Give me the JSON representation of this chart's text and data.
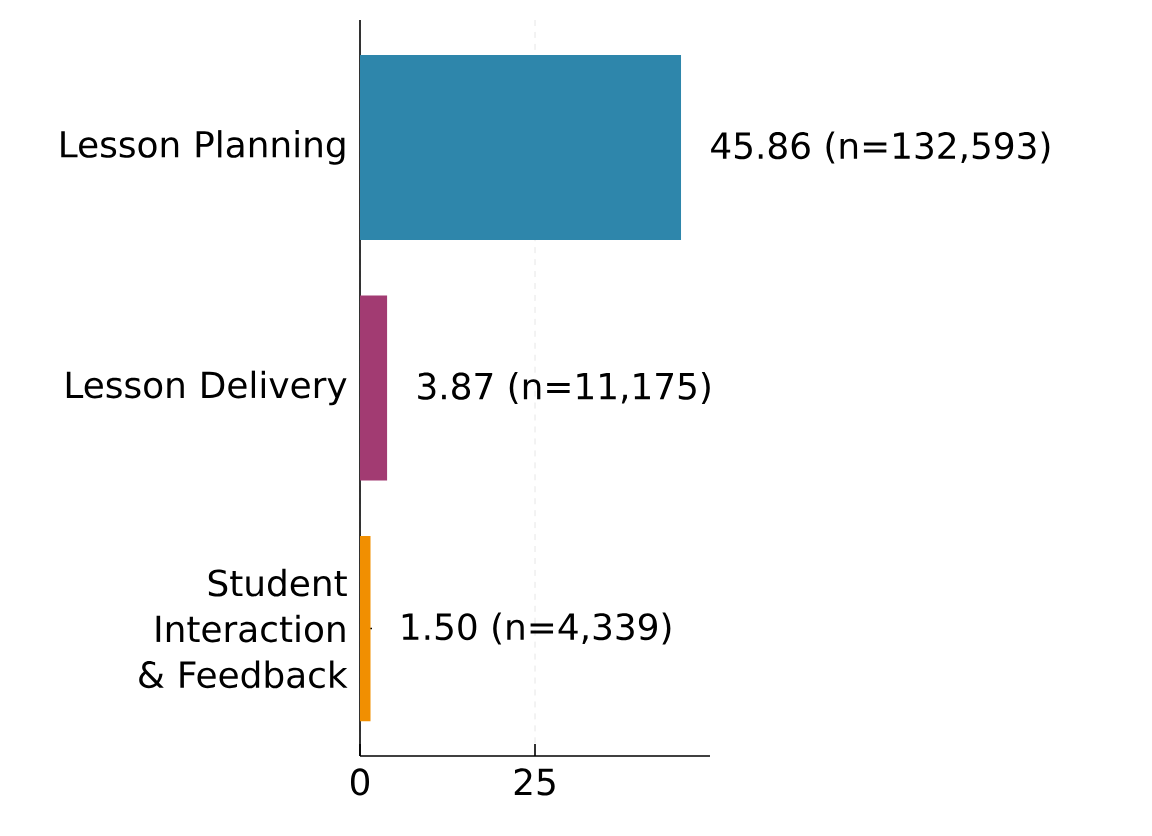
{
  "chart_data": {
    "type": "bar",
    "orientation": "horizontal",
    "categories": [
      "Lesson Planning",
      "Lesson Delivery",
      "Student Interaction & Feedback"
    ],
    "values": [
      45.86,
      3.87,
      1.5
    ],
    "colors": [
      "#2e86ab",
      "#a23b72",
      "#f18f01"
    ],
    "value_labels": [
      "45.86 (n=132,593)",
      "3.87 (n=11,175)",
      "1.50 (n=4,339)"
    ],
    "xlim": [
      0,
      50
    ],
    "xticks": [
      0,
      25
    ],
    "grid": "x"
  }
}
